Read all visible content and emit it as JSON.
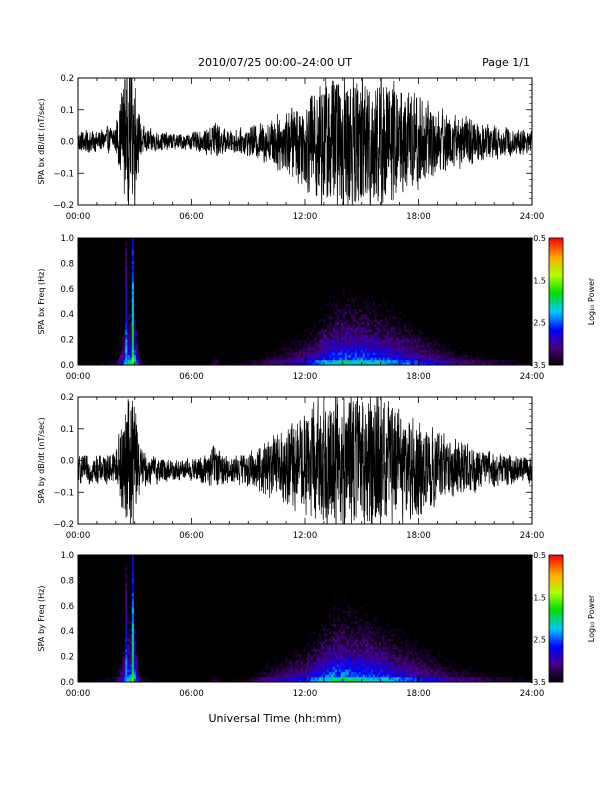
{
  "header": {
    "title": "2010/07/25  00:00–24:00 UT",
    "page": "Page 1/1"
  },
  "footer": {
    "xlabel": "Universal Time (hh:mm)"
  },
  "chart_data": [
    {
      "type": "line",
      "ylabel": "SPA bx dB/dt (nT/sec)",
      "xlim": [
        0,
        24
      ],
      "ylim": [
        -0.2,
        0.2
      ],
      "yticks": [
        -0.2,
        -0.1,
        0.0,
        0.1,
        0.2
      ],
      "ytick_labels": [
        "−0.2",
        "−0.1",
        "0.0",
        "0.1",
        "0.2"
      ],
      "xtick_labels": [
        "00:00",
        "06:00",
        "12:00",
        "18:00",
        "24:00"
      ],
      "color": "#000000",
      "x_hours": [
        0,
        1,
        2,
        2.5,
        2.75,
        3,
        3.25,
        3.5,
        4,
        5,
        6,
        7,
        7.25,
        7.5,
        8,
        9,
        10,
        11,
        12,
        13,
        13.5,
        14,
        15,
        16,
        17,
        18,
        19,
        20,
        21,
        22,
        23,
        24
      ],
      "envelope": [
        0.04,
        0.04,
        0.05,
        0.25,
        0.25,
        0.25,
        0.08,
        0.05,
        0.04,
        0.03,
        0.03,
        0.05,
        0.09,
        0.05,
        0.04,
        0.05,
        0.08,
        0.12,
        0.16,
        0.25,
        0.25,
        0.25,
        0.25,
        0.25,
        0.2,
        0.18,
        0.12,
        0.1,
        0.08,
        0.06,
        0.05,
        0.05
      ],
      "offset": [
        0.0,
        0.0,
        0.01,
        0.03,
        0.03,
        0.03,
        0.01,
        0.0,
        0.0,
        0.0,
        0.0,
        0.0,
        0.01,
        0.0,
        0.0,
        0.0,
        0.0,
        0.0,
        0.0,
        0.0,
        0.0,
        0.0,
        0.0,
        0.0,
        0.0,
        0.0,
        0.0,
        0.0,
        0.0,
        0.0,
        0.0,
        0.0
      ]
    },
    {
      "type": "heatmap",
      "ylabel": "SPA bx Freq (Hz)",
      "xlim": [
        0,
        24
      ],
      "ylim": [
        0,
        1.0
      ],
      "yticks": [
        0.0,
        0.2,
        0.4,
        0.6,
        0.8,
        1.0
      ],
      "ytick_labels": [
        "0.0",
        "0.2",
        "0.4",
        "0.6",
        "0.8",
        "1.0"
      ],
      "xtick_labels": [
        "00:00",
        "06:00",
        "12:00",
        "18:00",
        "24:00"
      ],
      "colorbar": {
        "label": "Log₁₀ Power",
        "range": [
          -3.5,
          -0.5
        ],
        "ticks": [
          "-0.5",
          "-1.5",
          "-2.5",
          "-3.5"
        ]
      },
      "x_hours": [
        0,
        1,
        2,
        2.5,
        2.75,
        3,
        3.25,
        3.5,
        4,
        5,
        6,
        7,
        7.25,
        7.5,
        8,
        9,
        10,
        11,
        12,
        13,
        13.5,
        14,
        15,
        16,
        17,
        18,
        19,
        20,
        21,
        22,
        23,
        24
      ],
      "activity": [
        0.2,
        0.2,
        0.25,
        0.7,
        0.9,
        0.9,
        0.35,
        0.25,
        0.2,
        0.15,
        0.15,
        0.2,
        0.35,
        0.2,
        0.2,
        0.25,
        0.35,
        0.45,
        0.55,
        0.75,
        0.85,
        0.85,
        0.85,
        0.8,
        0.7,
        0.6,
        0.5,
        0.4,
        0.35,
        0.3,
        0.25,
        0.2
      ],
      "spike_lines": [
        {
          "hour": 2.55,
          "power": -2.2
        },
        {
          "hour": 2.9,
          "power": -1.6
        }
      ]
    },
    {
      "type": "line",
      "ylabel": "SPA by dB/dt (nT/sec)",
      "xlim": [
        0,
        24
      ],
      "ylim": [
        -0.2,
        0.2
      ],
      "yticks": [
        -0.2,
        -0.1,
        0.0,
        0.1,
        0.2
      ],
      "ytick_labels": [
        "−0.2",
        "−0.1",
        "0.0",
        "0.1",
        "0.2"
      ],
      "xtick_labels": [
        "00:00",
        "06:00",
        "12:00",
        "18:00",
        "24:00"
      ],
      "color": "#000000",
      "x_hours": [
        0,
        1,
        2,
        2.5,
        2.75,
        3,
        3.25,
        3.5,
        4,
        5,
        6,
        7,
        7.25,
        7.5,
        8,
        9,
        10,
        11,
        12,
        13,
        13.5,
        14,
        15,
        16,
        17,
        18,
        19,
        20,
        21,
        22,
        23,
        24
      ],
      "envelope": [
        0.05,
        0.05,
        0.06,
        0.25,
        0.25,
        0.25,
        0.09,
        0.06,
        0.05,
        0.04,
        0.04,
        0.06,
        0.1,
        0.06,
        0.05,
        0.06,
        0.1,
        0.14,
        0.18,
        0.25,
        0.25,
        0.25,
        0.25,
        0.25,
        0.2,
        0.18,
        0.13,
        0.11,
        0.08,
        0.06,
        0.05,
        0.05
      ],
      "offset": [
        -0.03,
        -0.03,
        -0.02,
        0.0,
        0.0,
        0.0,
        -0.02,
        -0.03,
        -0.03,
        -0.03,
        -0.03,
        -0.03,
        -0.02,
        -0.03,
        -0.03,
        -0.03,
        -0.02,
        -0.02,
        -0.01,
        0.0,
        0.0,
        0.0,
        0.0,
        0.0,
        -0.01,
        -0.02,
        -0.02,
        -0.02,
        -0.03,
        -0.03,
        -0.03,
        -0.03
      ]
    },
    {
      "type": "heatmap",
      "ylabel": "SPA by Freq (Hz)",
      "xlim": [
        0,
        24
      ],
      "ylim": [
        0,
        1.0
      ],
      "yticks": [
        0.0,
        0.2,
        0.4,
        0.6,
        0.8,
        1.0
      ],
      "ytick_labels": [
        "0.0",
        "0.2",
        "0.4",
        "0.6",
        "0.8",
        "1.0"
      ],
      "xtick_labels": [
        "00:00",
        "06:00",
        "12:00",
        "18:00",
        "24:00"
      ],
      "colorbar": {
        "label": "Log₁₀ Power",
        "range": [
          -3.5,
          -0.5
        ],
        "ticks": [
          "-0.5",
          "-1.5",
          "-2.5",
          "-3.5"
        ]
      },
      "x_hours": [
        0,
        1,
        2,
        2.5,
        2.75,
        3,
        3.25,
        3.5,
        4,
        5,
        6,
        7,
        7.25,
        7.5,
        8,
        9,
        10,
        11,
        12,
        13,
        13.5,
        14,
        15,
        16,
        17,
        18,
        19,
        20,
        21,
        22,
        23,
        24
      ],
      "activity": [
        0.2,
        0.2,
        0.25,
        0.7,
        0.9,
        0.9,
        0.35,
        0.25,
        0.2,
        0.15,
        0.15,
        0.2,
        0.35,
        0.2,
        0.2,
        0.25,
        0.4,
        0.5,
        0.6,
        0.8,
        0.9,
        0.9,
        0.85,
        0.8,
        0.7,
        0.6,
        0.5,
        0.4,
        0.35,
        0.3,
        0.25,
        0.2
      ],
      "spike_lines": [
        {
          "hour": 2.55,
          "power": -2.3
        },
        {
          "hour": 2.9,
          "power": -1.7
        }
      ]
    }
  ]
}
